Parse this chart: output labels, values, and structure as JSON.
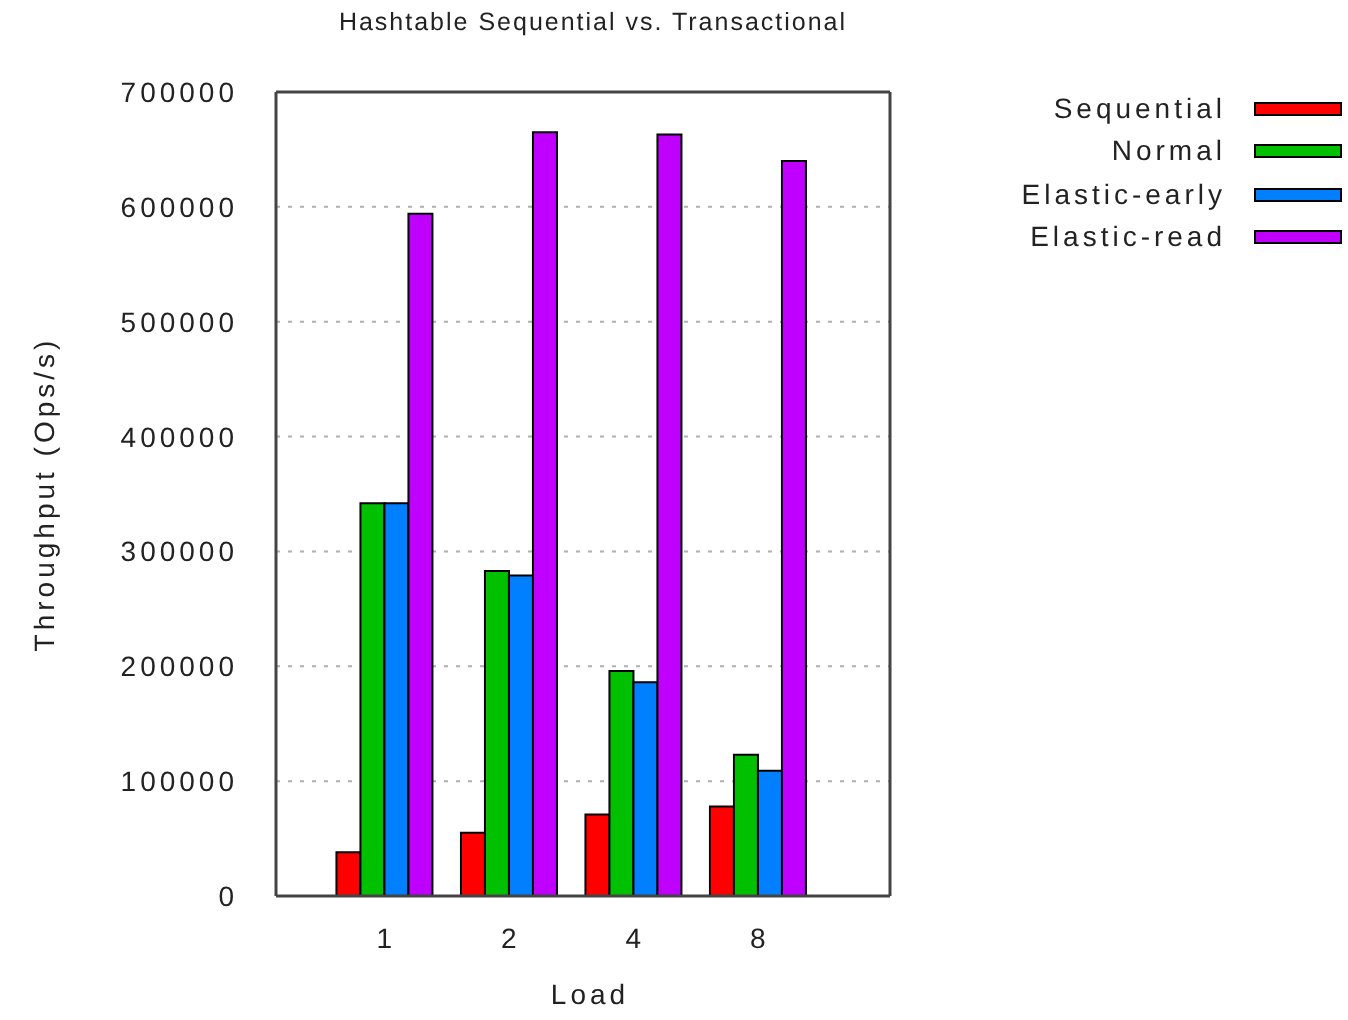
{
  "chart_data": {
    "type": "bar",
    "title": "Hashtable Sequential vs. Transactional",
    "xlabel": "Load",
    "ylabel": "Throughput (Ops/s)",
    "categories": [
      "1",
      "2",
      "4",
      "8"
    ],
    "series": [
      {
        "name": "Sequential",
        "color": "#ff0000",
        "values": [
          38000,
          55000,
          71000,
          78000
        ]
      },
      {
        "name": "Normal",
        "color": "#00c000",
        "values": [
          342000,
          283000,
          196000,
          123000
        ]
      },
      {
        "name": "Elastic-early",
        "color": "#0080ff",
        "values": [
          342000,
          279000,
          186000,
          109000
        ]
      },
      {
        "name": "Elastic-read",
        "color": "#c000ff",
        "values": [
          594000,
          665000,
          663000,
          640000
        ]
      }
    ],
    "ylim": [
      0,
      700000
    ],
    "yticks": [
      0,
      100000,
      200000,
      300000,
      400000,
      500000,
      600000,
      700000
    ],
    "grid": "y",
    "legend": "top right"
  }
}
